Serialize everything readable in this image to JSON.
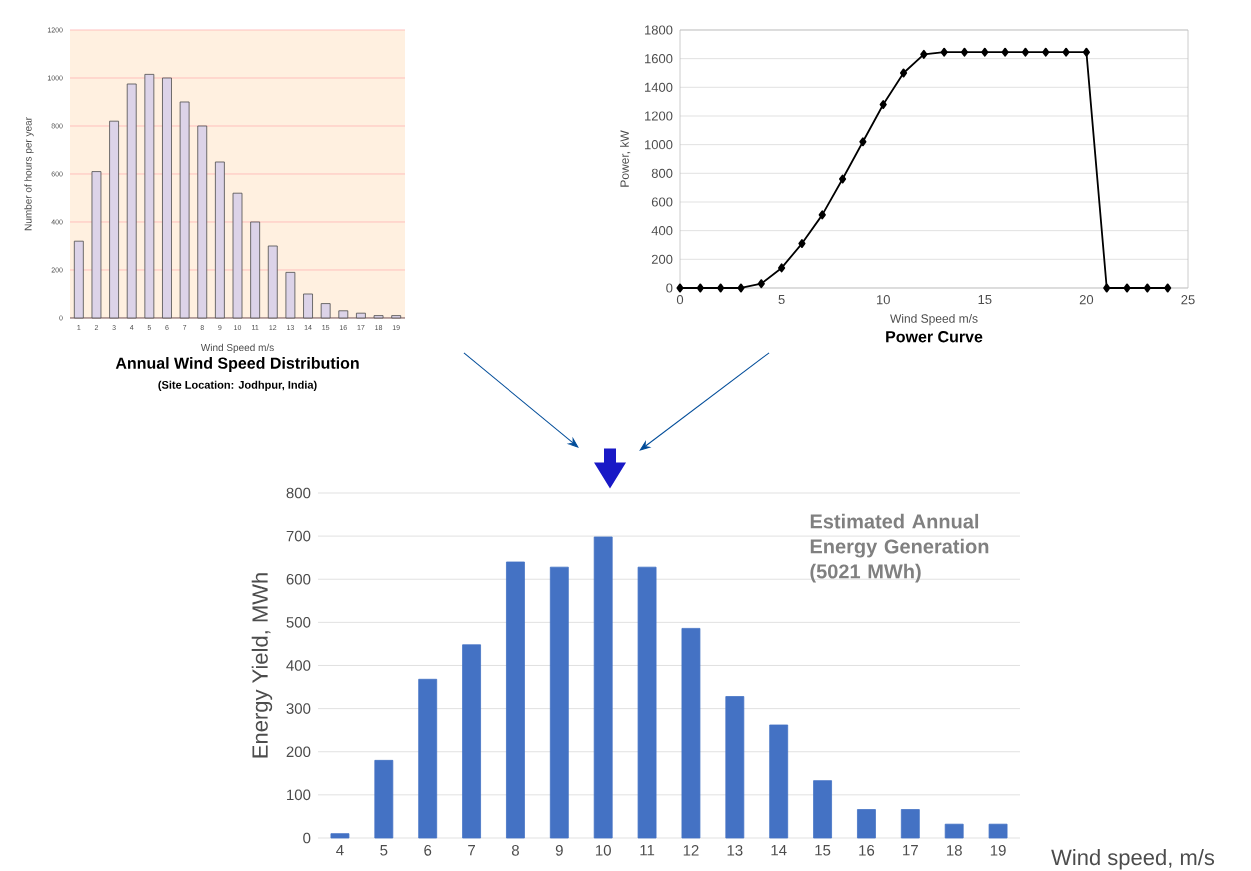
{
  "chart_data": [
    {
      "type": "bar",
      "title": "Annual Wind Speed Distribution",
      "subtitle": "(Site Location: Jodhpur, India)",
      "xlabel": "Wind Speed m/s",
      "ylabel": "Number of hours per year",
      "categories": [
        "1",
        "2",
        "3",
        "4",
        "5",
        "6",
        "7",
        "8",
        "9",
        "10",
        "11",
        "12",
        "13",
        "14",
        "15",
        "16",
        "17",
        "18",
        "19"
      ],
      "values": [
        320,
        610,
        820,
        975,
        1015,
        1000,
        900,
        800,
        650,
        520,
        400,
        300,
        190,
        100,
        60,
        30,
        20,
        10,
        10
      ],
      "color": "#dcd3e8",
      "ylim": [
        0,
        1200
      ],
      "yticks": [
        0,
        200,
        400,
        600,
        800,
        1000,
        1200
      ],
      "grid": "y"
    },
    {
      "type": "line",
      "title": "Power Curve",
      "xlabel": "Wind Speed m/s",
      "ylabel": "Power, kW",
      "x": [
        0,
        1,
        2,
        3,
        4,
        5,
        6,
        7,
        8,
        9,
        10,
        11,
        12,
        13,
        14,
        15,
        16,
        17,
        18,
        19,
        20,
        21,
        22,
        23,
        24
      ],
      "values": [
        0,
        0,
        0,
        0,
        30,
        140,
        310,
        510,
        760,
        1020,
        1280,
        1500,
        1630,
        1645,
        1645,
        1645,
        1645,
        1645,
        1645,
        1645,
        1645,
        0,
        0,
        0,
        0
      ],
      "color": "#000000",
      "marker": "diamond",
      "line_style": "solid",
      "xlim": [
        0,
        25
      ],
      "xticks": [
        0,
        5,
        10,
        15,
        20,
        25
      ],
      "ylim": [
        0,
        1800
      ],
      "yticks": [
        0,
        200,
        400,
        600,
        800,
        1000,
        1200,
        1400,
        1600,
        1800
      ],
      "grid": "y"
    },
    {
      "type": "bar",
      "xlabel": "Wind speed, m/s",
      "ylabel": "Energy Yield, MWh",
      "categories": [
        "4",
        "5",
        "6",
        "7",
        "8",
        "9",
        "10",
        "11",
        "12",
        "13",
        "14",
        "15",
        "16",
        "17",
        "18",
        "19"
      ],
      "values": [
        10,
        180,
        368,
        448,
        640,
        628,
        698,
        628,
        486,
        328,
        262,
        133,
        66,
        66,
        32,
        32
      ],
      "color": "#4472c4",
      "ylim": [
        0,
        800
      ],
      "yticks": [
        0,
        100,
        200,
        300,
        400,
        500,
        600,
        700,
        800
      ],
      "grid": "y",
      "annotations": [
        "Estimated Annual Energy Generation (5021 MWh)"
      ]
    }
  ]
}
